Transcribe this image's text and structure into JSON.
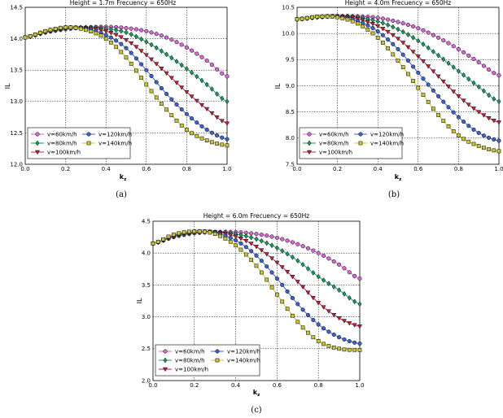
{
  "figure": {
    "captions": [
      "(a)",
      "(b)",
      "(c)"
    ]
  },
  "chart_data": [
    {
      "type": "line",
      "panel": "a",
      "title": "Height = 1.7m  Frecuency = 650Hz",
      "xlabel": "k",
      "xlabel_sub": "z",
      "ylabel": "IL",
      "xlim": [
        0.0,
        1.0
      ],
      "ylim": [
        12.0,
        14.5
      ],
      "xticks": [
        "0.0",
        "0.2",
        "0.4",
        "0.6",
        "0.8",
        "1.0"
      ],
      "yticks": [
        "12.0",
        "12.5",
        "13.0",
        "13.5",
        "14.0",
        "14.5"
      ],
      "x": [
        0.0,
        0.1,
        0.2,
        0.3,
        0.4,
        0.5,
        0.6,
        0.7,
        0.8,
        0.9,
        1.0
      ],
      "series": [
        {
          "name": "v=60km/h",
          "marker": "circle",
          "color": "#d46ad1",
          "values": [
            14.02,
            14.1,
            14.15,
            14.18,
            14.19,
            14.17,
            14.12,
            14.02,
            13.86,
            13.65,
            13.4
          ]
        },
        {
          "name": "v=80km/h",
          "marker": "diamond",
          "color": "#1e9a5e",
          "values": [
            14.02,
            14.1,
            14.16,
            14.18,
            14.16,
            14.1,
            13.95,
            13.75,
            13.52,
            13.27,
            13.0
          ]
        },
        {
          "name": "v=100km/h",
          "marker": "triangle",
          "color": "#c0253a",
          "values": [
            14.02,
            14.11,
            14.17,
            14.17,
            14.12,
            13.98,
            13.74,
            13.45,
            13.15,
            12.88,
            12.65
          ]
        },
        {
          "name": "v=120km/h",
          "marker": "circle",
          "color": "#3e62c9",
          "values": [
            14.02,
            14.12,
            14.18,
            14.16,
            14.06,
            13.85,
            13.5,
            13.12,
            12.8,
            12.55,
            12.4
          ]
        },
        {
          "name": "v=140km/h",
          "marker": "square",
          "color": "#c9c435",
          "values": [
            14.02,
            14.12,
            14.18,
            14.14,
            14.0,
            13.7,
            13.27,
            12.87,
            12.55,
            12.38,
            12.3
          ]
        }
      ],
      "legend": "lower-left"
    },
    {
      "type": "line",
      "panel": "b",
      "title": "Height = 4.0m  Frecuency = 650Hz",
      "xlabel": "k",
      "xlabel_sub": "z",
      "ylabel": "IL",
      "xlim": [
        0.0,
        1.0
      ],
      "ylim": [
        7.5,
        10.5
      ],
      "xticks": [
        "0.0",
        "0.2",
        "0.4",
        "0.6",
        "0.8",
        "1.0"
      ],
      "yticks": [
        "7.5",
        "8.0",
        "8.5",
        "9.0",
        "9.5",
        "10.0",
        "10.5"
      ],
      "x": [
        0.0,
        0.1,
        0.2,
        0.3,
        0.4,
        0.5,
        0.6,
        0.7,
        0.8,
        0.9,
        1.0
      ],
      "series": [
        {
          "name": "v=60km/h",
          "marker": "circle",
          "color": "#d46ad1",
          "values": [
            10.27,
            10.31,
            10.33,
            10.33,
            10.3,
            10.22,
            10.1,
            9.92,
            9.7,
            9.45,
            9.2
          ]
        },
        {
          "name": "v=80km/h",
          "marker": "diamond",
          "color": "#1e9a5e",
          "values": [
            10.27,
            10.31,
            10.33,
            10.31,
            10.23,
            10.08,
            9.86,
            9.58,
            9.28,
            8.98,
            8.7
          ]
        },
        {
          "name": "v=100km/h",
          "marker": "triangle",
          "color": "#c0253a",
          "values": [
            10.27,
            10.32,
            10.33,
            10.28,
            10.14,
            9.9,
            9.56,
            9.18,
            8.8,
            8.5,
            8.3
          ]
        },
        {
          "name": "v=120km/h",
          "marker": "circle",
          "color": "#3e62c9",
          "values": [
            10.27,
            10.32,
            10.32,
            10.24,
            10.04,
            9.7,
            9.25,
            8.8,
            8.4,
            8.1,
            7.95
          ]
        },
        {
          "name": "v=140km/h",
          "marker": "square",
          "color": "#c9c435",
          "values": [
            10.27,
            10.32,
            10.31,
            10.19,
            9.92,
            9.48,
            8.96,
            8.44,
            8.05,
            7.85,
            7.75
          ]
        }
      ],
      "legend": "lower-left"
    },
    {
      "type": "line",
      "panel": "c",
      "title": "Height = 6.0m  Frecuency = 650Hz",
      "xlabel": "k",
      "xlabel_sub": "z",
      "ylabel": "IL",
      "xlim": [
        0.0,
        1.0
      ],
      "ylim": [
        2.0,
        4.5
      ],
      "xticks": [
        "0.0",
        "0.2",
        "0.4",
        "0.6",
        "0.8",
        "1.0"
      ],
      "yticks": [
        "2.0",
        "2.5",
        "3.0",
        "3.5",
        "4.0",
        "4.5"
      ],
      "x": [
        0.0,
        0.1,
        0.2,
        0.3,
        0.4,
        0.5,
        0.6,
        0.7,
        0.8,
        0.9,
        1.0
      ],
      "series": [
        {
          "name": "v=60km/h",
          "marker": "circle",
          "color": "#d46ad1",
          "values": [
            4.15,
            4.25,
            4.31,
            4.33,
            4.33,
            4.3,
            4.24,
            4.14,
            4.0,
            3.82,
            3.6
          ]
        },
        {
          "name": "v=80km/h",
          "marker": "diamond",
          "color": "#1e9a5e",
          "values": [
            4.15,
            4.26,
            4.32,
            4.33,
            4.3,
            4.22,
            4.08,
            3.88,
            3.63,
            3.42,
            3.2
          ]
        },
        {
          "name": "v=100km/h",
          "marker": "triangle",
          "color": "#c0253a",
          "values": [
            4.15,
            4.27,
            4.33,
            4.33,
            4.26,
            4.1,
            3.85,
            3.55,
            3.22,
            2.98,
            2.85
          ]
        },
        {
          "name": "v=120km/h",
          "marker": "circle",
          "color": "#3e62c9",
          "values": [
            4.15,
            4.28,
            4.34,
            4.32,
            4.2,
            3.96,
            3.6,
            3.2,
            2.88,
            2.68,
            2.58
          ]
        },
        {
          "name": "v=140km/h",
          "marker": "square",
          "color": "#c9c435",
          "values": [
            4.15,
            4.29,
            4.34,
            4.3,
            4.12,
            3.8,
            3.35,
            2.92,
            2.62,
            2.5,
            2.48
          ]
        }
      ],
      "legend": "lower-left"
    }
  ]
}
